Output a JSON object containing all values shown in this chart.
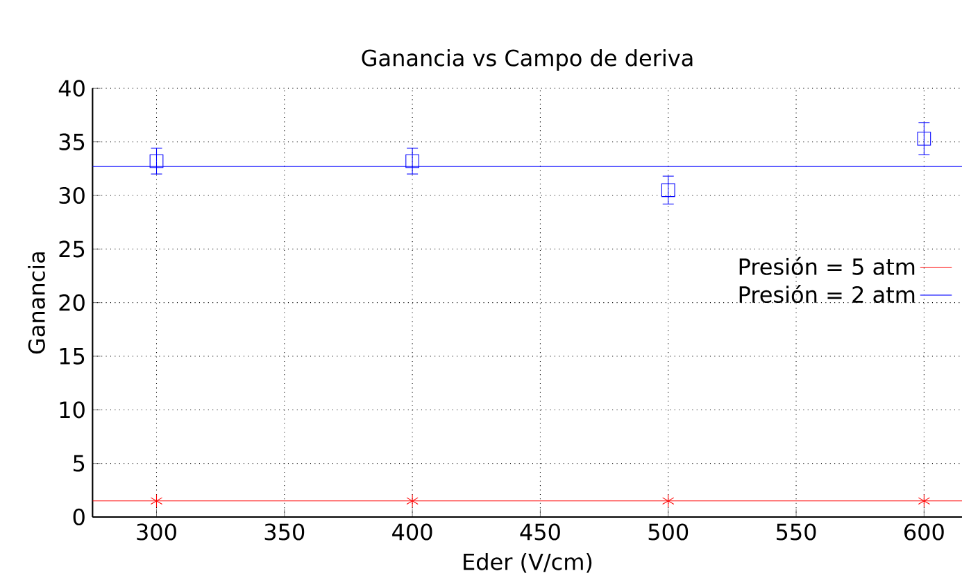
{
  "chart_data": {
    "type": "scatter",
    "title": "Ganancia vs Campo de deriva",
    "xlabel": "Eder (V/cm)",
    "ylabel": "Ganancia",
    "xlim": [
      275,
      615
    ],
    "xticks": [
      300,
      350,
      400,
      450,
      500,
      550,
      600
    ],
    "ylim": [
      0,
      40
    ],
    "yticks": [
      0,
      5,
      10,
      15,
      20,
      25,
      30,
      35,
      40
    ],
    "grid": true,
    "legend": "right",
    "series": [
      {
        "type": "line",
        "name": "Presión = 5 atm",
        "color": "#ff0000",
        "x": [
          275,
          615
        ],
        "values": [
          1.5,
          1.5
        ],
        "marker": "none"
      },
      {
        "type": "line",
        "name": "Presión = 2 atm",
        "color": "#0000ff",
        "x": [
          275,
          615
        ],
        "values": [
          32.7,
          32.7
        ],
        "marker": "none"
      },
      {
        "type": "scatter",
        "color": "#ff0000",
        "x": [
          300,
          400,
          500,
          600
        ],
        "values": [
          1.5,
          1.5,
          1.5,
          1.5
        ],
        "marker": "cross"
      },
      {
        "type": "scatter",
        "color": "#0000ff",
        "x": [
          300,
          400,
          500,
          600
        ],
        "values": [
          33.2,
          33.2,
          30.5,
          35.3
        ],
        "errors": [
          1.2,
          1.2,
          1.3,
          1.5
        ],
        "marker": "square"
      }
    ]
  }
}
